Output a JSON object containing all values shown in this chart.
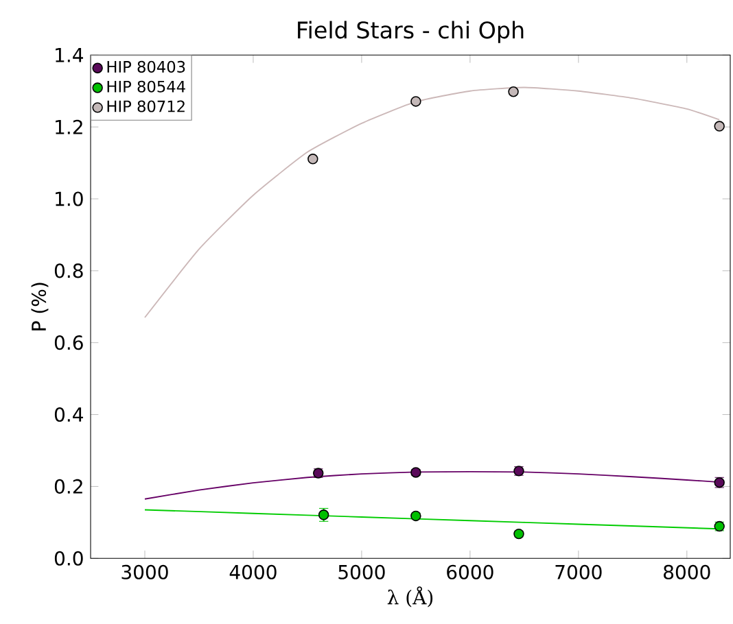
{
  "chart_data": {
    "type": "scatter",
    "title": "Field Stars - chi Oph",
    "xlabel": "λ (Å)",
    "ylabel": "P (%)",
    "xlim": [
      2500,
      8400
    ],
    "ylim": [
      0,
      1.4
    ],
    "xticks": [
      3000,
      4000,
      5000,
      6000,
      7000,
      8000
    ],
    "yticks": [
      {
        "value": 0,
        "label": "0.0"
      },
      0.2,
      0.4,
      0.6,
      0.8,
      {
        "value": 1,
        "label": "1.0"
      },
      1.2,
      1.4
    ],
    "legend": "top left",
    "grid": false,
    "series": [
      {
        "name": "HIP 80403",
        "marker": "circle",
        "color": "#5a0a5a",
        "x": [
          4600,
          5500,
          6450,
          8300
        ],
        "values": [
          0.237,
          0.239,
          0.243,
          0.211
        ],
        "errors": [
          0.012,
          0.008,
          0.012,
          0.014
        ]
      },
      {
        "name": "HIP 80544",
        "marker": "circle",
        "color": "#00c000",
        "x": [
          4650,
          5500,
          6450,
          8300
        ],
        "values": [
          0.121,
          0.118,
          0.068,
          0.089
        ],
        "errors": [
          0.018,
          0.008,
          0.008,
          0.012
        ]
      },
      {
        "name": "HIP 80712",
        "marker": "circle",
        "color": "#c4b8b8",
        "x": [
          4550,
          5500,
          6400,
          8300
        ],
        "values": [
          1.111,
          1.271,
          1.298,
          1.202
        ],
        "errors": [
          null,
          null,
          null,
          0.006
        ]
      },
      {
        "type": "line",
        "marker": "none",
        "color": "#660066",
        "x": [
          3000,
          3500,
          4000,
          4500,
          5000,
          5500,
          6000,
          6500,
          7000,
          7500,
          8000,
          8300
        ],
        "values": [
          0.165,
          0.19,
          0.21,
          0.225,
          0.235,
          0.24,
          0.241,
          0.24,
          0.235,
          0.227,
          0.218,
          0.212
        ]
      },
      {
        "type": "line",
        "marker": "none",
        "color": "#00cc00",
        "x": [
          3000,
          4000,
          5000,
          6000,
          7000,
          8300
        ],
        "values": [
          0.135,
          0.125,
          0.115,
          0.105,
          0.095,
          0.082
        ]
      },
      {
        "type": "line",
        "marker": "none",
        "color": "#ccb8b8",
        "x": [
          3000,
          3500,
          4000,
          4500,
          5000,
          5500,
          6000,
          6500,
          7000,
          7500,
          8000,
          8300
        ],
        "values": [
          0.67,
          0.86,
          1.01,
          1.13,
          1.21,
          1.27,
          1.3,
          1.31,
          1.3,
          1.28,
          1.25,
          1.22
        ]
      }
    ]
  }
}
